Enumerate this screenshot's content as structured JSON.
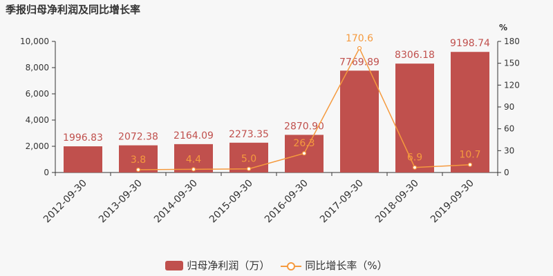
{
  "title": "季报归母净利润及同比增长率",
  "colors": {
    "bar": "#c0504d",
    "line": "#f59a3e",
    "axis": "#333333"
  },
  "chart_data": {
    "type": "bar",
    "title": "季报归母净利润及同比增长率",
    "categories": [
      "2012-09-30",
      "2013-09-30",
      "2014-09-30",
      "2015-09-30",
      "2016-09-30",
      "2017-09-30",
      "2018-09-30",
      "2019-09-30"
    ],
    "series": [
      {
        "name": "归母净利润（万）",
        "type": "bar",
        "axis": "left",
        "values": [
          1996.83,
          2072.38,
          2164.09,
          2273.35,
          2870.9,
          7769.89,
          8306.18,
          9198.74
        ],
        "labels": [
          "1996.83",
          "2072.38",
          "2164.09",
          "2273.35",
          "2870.90",
          "7769.89",
          "8306.18",
          "9198.74"
        ]
      },
      {
        "name": "同比增长率（%）",
        "type": "line",
        "axis": "right",
        "values": [
          null,
          3.8,
          4.4,
          5.0,
          26.3,
          170.6,
          6.9,
          10.7
        ],
        "labels": [
          null,
          "3.8",
          "4.4",
          "5.0",
          "26.3",
          "170.6",
          "6.9",
          "10.7"
        ]
      }
    ],
    "y_left": {
      "ylim": [
        0,
        10000
      ],
      "ticks": [
        "0",
        "2,000",
        "4,000",
        "6,000",
        "8,000",
        "10,000"
      ]
    },
    "y_right": {
      "label": "%",
      "ylim": [
        0,
        180
      ],
      "ticks": [
        "0",
        "30",
        "60",
        "90",
        "120",
        "150",
        "180"
      ]
    },
    "grid": false,
    "legend": "bottom"
  },
  "legend": [
    {
      "name": "归母净利润（万）",
      "kind": "bar"
    },
    {
      "name": "同比增长率（%）",
      "kind": "line"
    }
  ]
}
